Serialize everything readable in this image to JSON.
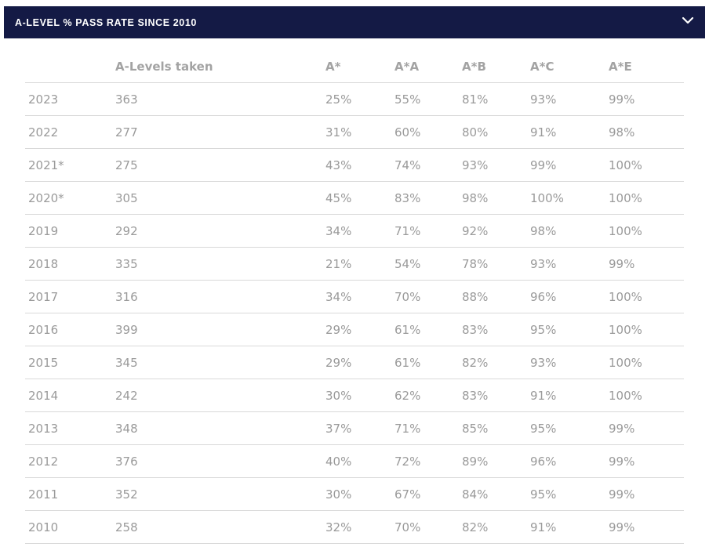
{
  "accordion": {
    "title": "A-LEVEL % PASS RATE SINCE 2010",
    "icon": "chevron-down-icon"
  },
  "table": {
    "headers": [
      "",
      "A-Levels taken",
      "A*",
      "A*A",
      "A*B",
      "A*C",
      "A*E"
    ],
    "rows": [
      [
        "2023",
        "363",
        "25%",
        "55%",
        "81%",
        "93%",
        "99%"
      ],
      [
        "2022",
        "277",
        "31%",
        "60%",
        "80%",
        "91%",
        "98%"
      ],
      [
        "2021*",
        "275",
        "43%",
        "74%",
        "93%",
        "99%",
        "100%"
      ],
      [
        "2020*",
        "305",
        "45%",
        "83%",
        "98%",
        "100%",
        "100%"
      ],
      [
        "2019",
        "292",
        "34%",
        "71%",
        "92%",
        "98%",
        "100%"
      ],
      [
        "2018",
        "335",
        "21%",
        "54%",
        "78%",
        "93%",
        "99%"
      ],
      [
        "2017",
        "316",
        "34%",
        "70%",
        "88%",
        "96%",
        "100%"
      ],
      [
        "2016",
        "399",
        "29%",
        "61%",
        "83%",
        "95%",
        "100%"
      ],
      [
        "2015",
        "345",
        "29%",
        "61%",
        "82%",
        "93%",
        "100%"
      ],
      [
        "2014",
        "242",
        "30%",
        "62%",
        "83%",
        "91%",
        "100%"
      ],
      [
        "2013",
        "348",
        "37%",
        "71%",
        "85%",
        "95%",
        "99%"
      ],
      [
        "2012",
        "376",
        "40%",
        "72%",
        "89%",
        "96%",
        "99%"
      ],
      [
        "2011",
        "352",
        "30%",
        "67%",
        "84%",
        "95%",
        "99%"
      ],
      [
        "2010",
        "258",
        "32%",
        "70%",
        "82%",
        "91%",
        "99%"
      ]
    ]
  },
  "colors": {
    "header_bg": "#141a45",
    "header_text": "#ffffff",
    "cell_text": "#9a9a9a",
    "divider": "#d9d9d9"
  }
}
